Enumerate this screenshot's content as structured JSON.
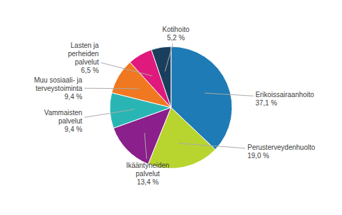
{
  "chart_data": {
    "type": "pie",
    "categories": [
      "Erikoissairaanhoito",
      "Perusterveydenhuolto",
      "Ikääntyneiden\npalvelut",
      "Vammaisten\npalvelut",
      "Muu sosiaali- ja\nterveystoiminta",
      "Lasten ja\nperheiden\npalvelut",
      "Kotihoito"
    ],
    "values": [
      37.1,
      19.0,
      13.4,
      9.4,
      9.4,
      6.5,
      5.2
    ],
    "value_labels": [
      "37,1 %",
      "19,0 %",
      "13,4 %",
      "9,4 %",
      "9,4 %",
      "6,5 %",
      "5,2 %"
    ],
    "colors": [
      "#1e7bb5",
      "#b8d42e",
      "#8b1f8b",
      "#2ab5b5",
      "#f07820",
      "#e0197d",
      "#1a3f5c"
    ]
  }
}
